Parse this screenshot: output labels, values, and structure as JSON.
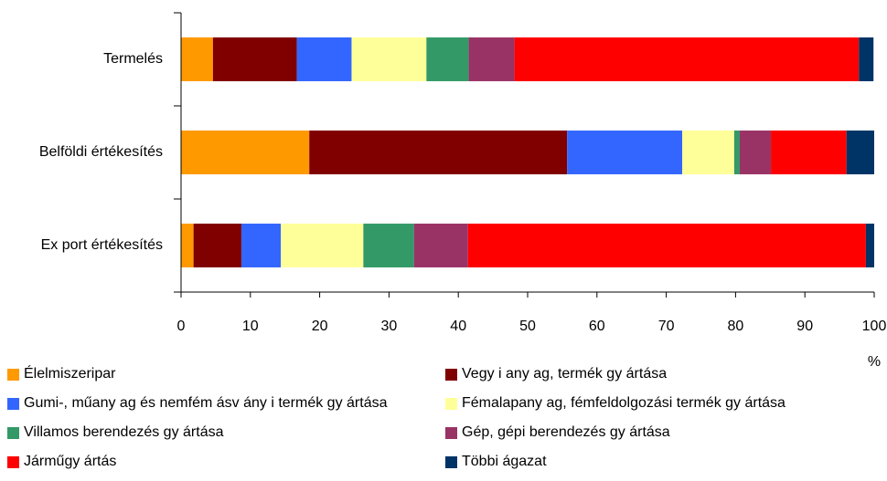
{
  "chart_data": {
    "type": "stacked-barh",
    "categories": [
      "Termelés",
      "Belföldi értékesítés",
      "Ex port értékesítés"
    ],
    "series": [
      {
        "name": "Élelmiszeripar",
        "color": "#ff9900",
        "values": [
          4.6,
          18.5,
          1.8
        ]
      },
      {
        "name": "Vegy i any ag, termék gy ártása",
        "color": "#800000",
        "values": [
          12.1,
          37.2,
          6.9
        ]
      },
      {
        "name": "Gumi-, műany ag és nemfém ásv ány i termék gy ártása",
        "color": "#3366ff",
        "values": [
          7.9,
          16.6,
          5.7
        ]
      },
      {
        "name": "Fémalapany ag, fémfeldolgozási termék gy ártása",
        "color": "#ffff99",
        "values": [
          10.8,
          7.5,
          11.9
        ]
      },
      {
        "name": "Villamos berendezés gy ártása",
        "color": "#339966",
        "values": [
          6.1,
          0.8,
          7.3
        ]
      },
      {
        "name": "Gép, gépi berendezés gy ártása",
        "color": "#993366",
        "values": [
          6.6,
          4.5,
          7.8
        ]
      },
      {
        "name": "Járműgy ártás",
        "color": "#ff0000",
        "values": [
          49.7,
          10.9,
          57.4
        ]
      },
      {
        "name": "Többi ágazat",
        "color": "#003366",
        "values": [
          2.1,
          4.0,
          1.2
        ]
      }
    ],
    "xlim": [
      0,
      100
    ],
    "xticks": [
      0,
      10,
      20,
      30,
      40,
      50,
      60,
      70,
      80,
      90,
      100
    ],
    "x_label": "%",
    "grid": false,
    "legend": "bottom"
  }
}
